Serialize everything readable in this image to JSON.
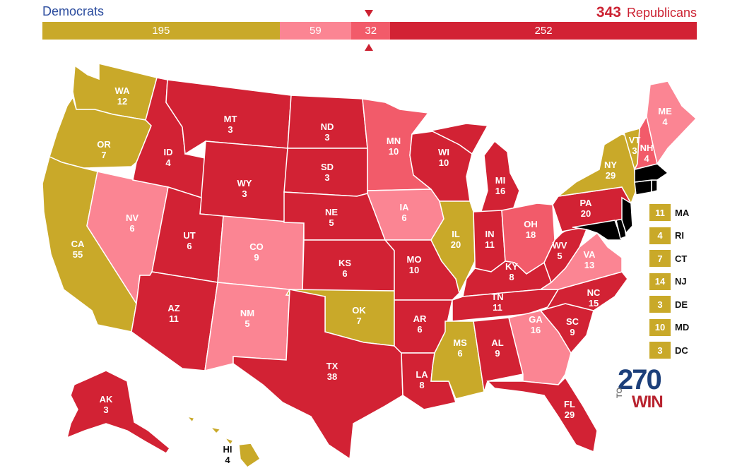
{
  "header": {
    "dem_label": "Democrats",
    "rep_total": "343",
    "rep_label": "Republicans"
  },
  "colors": {
    "dem": "#c9a929",
    "lean_rep": "#fb8593",
    "tossup_rep": "#f25b6a",
    "safe_rep": "#d22234",
    "rep_text": "#cc2232",
    "dem_text": "#2b4c9e"
  },
  "bar": [
    {
      "value": 195,
      "label": "195",
      "color": "#c9a929"
    },
    {
      "value": 59,
      "label": "59",
      "color": "#fb8593"
    },
    {
      "value": 32,
      "label": "32",
      "color": "#f25b6a"
    },
    {
      "value": 252,
      "label": "252",
      "color": "#d22234"
    }
  ],
  "states": {
    "WA": {
      "name": "WA",
      "ev": "12",
      "party": "dem"
    },
    "OR": {
      "name": "OR",
      "ev": "7",
      "party": "dem"
    },
    "CA": {
      "name": "CA",
      "ev": "55",
      "party": "dem"
    },
    "NV": {
      "name": "NV",
      "ev": "6",
      "party": "lean_rep"
    },
    "ID": {
      "name": "ID",
      "ev": "4",
      "party": "safe_rep"
    },
    "MT": {
      "name": "MT",
      "ev": "3",
      "party": "safe_rep"
    },
    "WY": {
      "name": "WY",
      "ev": "3",
      "party": "safe_rep"
    },
    "UT": {
      "name": "UT",
      "ev": "6",
      "party": "safe_rep"
    },
    "AZ": {
      "name": "AZ",
      "ev": "11",
      "party": "safe_rep"
    },
    "CO": {
      "name": "CO",
      "ev": "9",
      "party": "lean_rep"
    },
    "NM": {
      "name": "NM",
      "ev": "5",
      "party": "lean_rep"
    },
    "ND": {
      "name": "ND",
      "ev": "3",
      "party": "safe_rep"
    },
    "SD": {
      "name": "SD",
      "ev": "3",
      "party": "safe_rep"
    },
    "NE": {
      "name": "NE",
      "ev": "5",
      "party": "safe_rep"
    },
    "KS": {
      "name": "KS",
      "ev": "6",
      "party": "safe_rep"
    },
    "OK": {
      "name": "OK",
      "ev": "7",
      "party": "dem"
    },
    "TX": {
      "name": "TX",
      "ev": "38",
      "party": "safe_rep"
    },
    "MN": {
      "name": "MN",
      "ev": "10",
      "party": "tossup_rep"
    },
    "IA": {
      "name": "IA",
      "ev": "6",
      "party": "lean_rep"
    },
    "MO": {
      "name": "MO",
      "ev": "10",
      "party": "safe_rep"
    },
    "AR": {
      "name": "AR",
      "ev": "6",
      "party": "safe_rep"
    },
    "LA": {
      "name": "LA",
      "ev": "8",
      "party": "safe_rep"
    },
    "WI": {
      "name": "WI",
      "ev": "10",
      "party": "safe_rep"
    },
    "IL": {
      "name": "IL",
      "ev": "20",
      "party": "dem"
    },
    "MI": {
      "name": "MI",
      "ev": "16",
      "party": "safe_rep"
    },
    "IN": {
      "name": "IN",
      "ev": "11",
      "party": "safe_rep"
    },
    "OH": {
      "name": "OH",
      "ev": "18",
      "party": "tossup_rep"
    },
    "KY": {
      "name": "KY",
      "ev": "8",
      "party": "safe_rep"
    },
    "TN": {
      "name": "TN",
      "ev": "11",
      "party": "safe_rep"
    },
    "MS": {
      "name": "MS",
      "ev": "6",
      "party": "dem"
    },
    "AL": {
      "name": "AL",
      "ev": "9",
      "party": "safe_rep"
    },
    "GA": {
      "name": "GA",
      "ev": "16",
      "party": "lean_rep"
    },
    "FL": {
      "name": "FL",
      "ev": "29",
      "party": "safe_rep"
    },
    "SC": {
      "name": "SC",
      "ev": "9",
      "party": "safe_rep"
    },
    "NC": {
      "name": "NC",
      "ev": "15",
      "party": "safe_rep"
    },
    "VA": {
      "name": "VA",
      "ev": "13",
      "party": "lean_rep"
    },
    "WV": {
      "name": "WV",
      "ev": "5",
      "party": "safe_rep"
    },
    "PA": {
      "name": "PA",
      "ev": "20",
      "party": "safe_rep"
    },
    "NY": {
      "name": "NY",
      "ev": "29",
      "party": "dem"
    },
    "VT": {
      "name": "VT",
      "ev": "3",
      "party": "dem"
    },
    "NH": {
      "name": "NH",
      "ev": "4",
      "party": "tossup_rep"
    },
    "ME": {
      "name": "ME",
      "ev": "4",
      "party": "lean_rep"
    },
    "AK": {
      "name": "AK",
      "ev": "3",
      "party": "safe_rep"
    },
    "HI": {
      "name": "HI",
      "ev": "4",
      "party": "dem"
    }
  },
  "small_states": [
    {
      "name": "MA",
      "ev": "11"
    },
    {
      "name": "RI",
      "ev": "4"
    },
    {
      "name": "CT",
      "ev": "7"
    },
    {
      "name": "NJ",
      "ev": "14"
    },
    {
      "name": "DE",
      "ev": "3"
    },
    {
      "name": "MD",
      "ev": "10"
    },
    {
      "name": "DC",
      "ev": "3"
    }
  ],
  "logo": {
    "number": "270",
    "to": "TO",
    "win": "WIN"
  }
}
